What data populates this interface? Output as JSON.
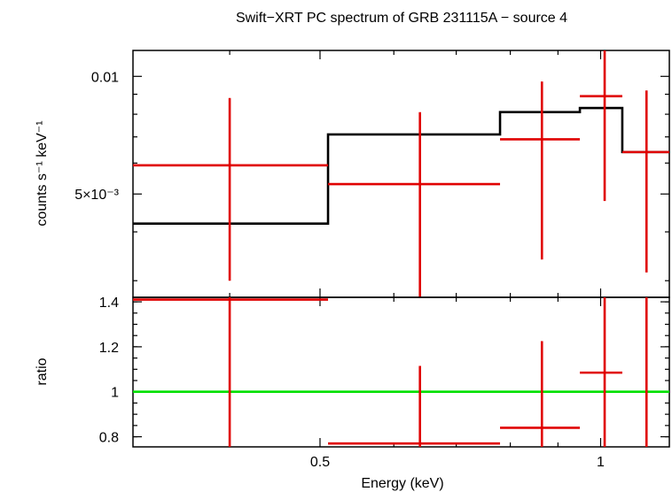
{
  "chart_data": {
    "type": "scatter",
    "title": "Swift−XRT PC spectrum of GRB 231115A − source 4",
    "xlabel": "Energy (keV)",
    "x_scale": "log",
    "xlim": [
      0.315,
      1.185
    ],
    "x_ticks": [
      {
        "value": 0.5,
        "label": "0.5"
      },
      {
        "value": 1,
        "label": "1"
      }
    ],
    "panels": [
      {
        "name": "spectrum",
        "ylabel": "counts s⁻¹ keV⁻¹",
        "y_scale": "log",
        "ylim": [
          0.00272,
          0.01165
        ],
        "y_ticks": [
          {
            "value": 0.01,
            "label": "0.01"
          },
          {
            "value": 0.005,
            "label": "5×10⁻³"
          }
        ],
        "data": [
          {
            "x_lo": 0.315,
            "x_hi": 0.51,
            "x": 0.4,
            "y": 0.00592,
            "y_lo": 0.003,
            "y_hi": 0.0088
          },
          {
            "x_lo": 0.51,
            "x_hi": 0.78,
            "x": 0.64,
            "y": 0.0053,
            "y_lo": 0.00272,
            "y_hi": 0.0081
          },
          {
            "x_lo": 0.78,
            "x_hi": 0.95,
            "x": 0.865,
            "y": 0.0069,
            "y_lo": 0.0034,
            "y_hi": 0.0097
          },
          {
            "x_lo": 0.95,
            "x_hi": 1.055,
            "x": 1.01,
            "y": 0.0089,
            "y_lo": 0.0048,
            "y_hi": 0.0118
          },
          {
            "x_lo": 1.055,
            "x_hi": 1.185,
            "x": 1.12,
            "y": 0.0064,
            "y_lo": 0.00315,
            "y_hi": 0.0092
          }
        ],
        "model": [
          {
            "x_lo": 0.315,
            "x_hi": 0.51,
            "y": 0.0042
          },
          {
            "x_lo": 0.51,
            "x_hi": 0.78,
            "y": 0.0071
          },
          {
            "x_lo": 0.78,
            "x_hi": 0.95,
            "y": 0.0081
          },
          {
            "x_lo": 0.95,
            "x_hi": 1.055,
            "y": 0.0083
          },
          {
            "x_lo": 1.055,
            "x_hi": 1.185,
            "y": 0.0064
          }
        ]
      },
      {
        "name": "ratio",
        "ylabel": "ratio",
        "y_scale": "linear",
        "ylim": [
          0.755,
          1.42
        ],
        "y_ticks": [
          {
            "value": 0.8,
            "label": "0.8"
          },
          {
            "value": 1,
            "label": "1"
          },
          {
            "value": 1.2,
            "label": "1.2"
          },
          {
            "value": 1.4,
            "label": "1.4"
          }
        ],
        "reference_line": 1,
        "data": [
          {
            "x_lo": 0.315,
            "x_hi": 0.51,
            "x": 0.4,
            "y": 1.41,
            "y_lo": 0.755,
            "y_hi": 1.42
          },
          {
            "x_lo": 0.51,
            "x_hi": 0.78,
            "x": 0.64,
            "y": 0.77,
            "y_lo": 0.755,
            "y_hi": 1.115
          },
          {
            "x_lo": 0.78,
            "x_hi": 0.95,
            "x": 0.865,
            "y": 0.84,
            "y_lo": 0.755,
            "y_hi": 1.225
          },
          {
            "x_lo": 0.95,
            "x_hi": 1.055,
            "x": 1.01,
            "y": 1.085,
            "y_lo": 0.755,
            "y_hi": 1.42
          },
          {
            "x_lo": 1.055,
            "x_hi": 1.185,
            "x": 1.12,
            "y": null,
            "y_lo": 0.755,
            "y_hi": 1.42
          }
        ]
      }
    ],
    "colors": {
      "data": "#e00000",
      "model": "#000000",
      "reference": "#00e000"
    },
    "grid": false,
    "legend": false
  }
}
